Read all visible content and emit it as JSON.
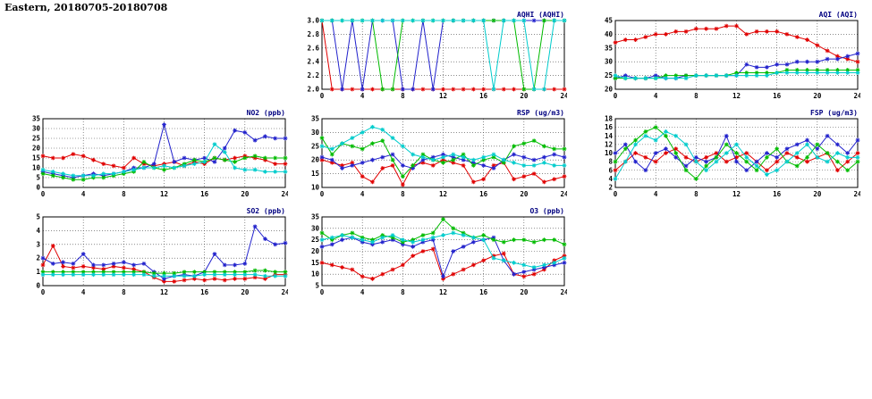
{
  "title": "Eastern, 20180705-20180708",
  "colors": {
    "red": "#e00000",
    "blue": "#2222cc",
    "green": "#00bb00",
    "cyan": "#00cccc",
    "axis": "#000000",
    "grid": "#444444",
    "chart_title": "#000080"
  },
  "chart_data": [
    {
      "type": "line",
      "key": "aqhi",
      "title": "AQHI (AQHI)",
      "xlim": [
        0,
        24
      ],
      "xticks": [
        0,
        4,
        8,
        12,
        16,
        20,
        24
      ],
      "ylim": [
        2,
        3
      ],
      "yticks": [
        2,
        2.2,
        2.4,
        2.6,
        2.8,
        3
      ],
      "ydec": 1,
      "x": [
        0,
        1,
        2,
        3,
        4,
        5,
        6,
        7,
        8,
        9,
        10,
        11,
        12,
        13,
        14,
        15,
        16,
        17,
        18,
        19,
        20,
        21,
        22,
        23,
        24
      ],
      "series": [
        {
          "name": "red",
          "color": "#e00000",
          "values": [
            3,
            2,
            2,
            2,
            2,
            2,
            2,
            2,
            2,
            2,
            2,
            2,
            2,
            2,
            2,
            2,
            2,
            2,
            2,
            2,
            2,
            2,
            2,
            2,
            2
          ]
        },
        {
          "name": "blue",
          "color": "#2222cc",
          "values": [
            3,
            3,
            2,
            3,
            2,
            3,
            3,
            3,
            2,
            2,
            3,
            2,
            3,
            3,
            3,
            3,
            3,
            3,
            3,
            3,
            3,
            3,
            3,
            3,
            3
          ]
        },
        {
          "name": "green",
          "color": "#00bb00",
          "values": [
            3,
            3,
            3,
            3,
            3,
            3,
            2,
            2,
            3,
            3,
            3,
            3,
            3,
            3,
            3,
            3,
            3,
            3,
            3,
            3,
            2,
            2,
            3,
            3,
            3
          ]
        },
        {
          "name": "cyan",
          "color": "#00cccc",
          "values": [
            3,
            3,
            3,
            3,
            3,
            3,
            3,
            3,
            3,
            3,
            3,
            3,
            3,
            3,
            3,
            3,
            3,
            2,
            3,
            3,
            3,
            2,
            2,
            3,
            3
          ]
        }
      ]
    },
    {
      "type": "line",
      "key": "aqi",
      "title": "AQI (AQI)",
      "xlim": [
        0,
        24
      ],
      "xticks": [
        0,
        4,
        8,
        12,
        16,
        20,
        24
      ],
      "ylim": [
        20,
        45
      ],
      "yticks": [
        20,
        25,
        30,
        35,
        40,
        45
      ],
      "ydec": 0,
      "x": [
        0,
        1,
        2,
        3,
        4,
        5,
        6,
        7,
        8,
        9,
        10,
        11,
        12,
        13,
        14,
        15,
        16,
        17,
        18,
        19,
        20,
        21,
        22,
        23,
        24
      ],
      "series": [
        {
          "name": "red",
          "color": "#e00000",
          "values": [
            37,
            38,
            38,
            39,
            40,
            40,
            41,
            41,
            42,
            42,
            42,
            43,
            43,
            40,
            41,
            41,
            41,
            40,
            39,
            38,
            36,
            34,
            32,
            31,
            30
          ]
        },
        {
          "name": "blue",
          "color": "#2222cc",
          "values": [
            24,
            25,
            24,
            24,
            25,
            24,
            24,
            25,
            25,
            25,
            25,
            25,
            25,
            29,
            28,
            28,
            29,
            29,
            30,
            30,
            30,
            31,
            31,
            32,
            33
          ]
        },
        {
          "name": "green",
          "color": "#00bb00",
          "values": [
            24,
            24,
            24,
            24,
            24,
            25,
            25,
            25,
            25,
            25,
            25,
            25,
            26,
            26,
            26,
            26,
            26,
            27,
            27,
            27,
            27,
            27,
            27,
            27,
            27
          ]
        },
        {
          "name": "cyan",
          "color": "#00cccc",
          "values": [
            25,
            24,
            24,
            24,
            24,
            24,
            24,
            24,
            25,
            25,
            25,
            25,
            25,
            25,
            25,
            25,
            26,
            26,
            26,
            26,
            26,
            26,
            26,
            26,
            26
          ]
        }
      ]
    },
    {
      "type": "line",
      "key": "no2",
      "title": "NO2 (ppb)",
      "xlim": [
        0,
        24
      ],
      "xticks": [
        0,
        4,
        8,
        12,
        16,
        20,
        24
      ],
      "ylim": [
        0,
        35
      ],
      "yticks": [
        0,
        5,
        10,
        15,
        20,
        25,
        30,
        35
      ],
      "ydec": 0,
      "x": [
        0,
        1,
        2,
        3,
        4,
        5,
        6,
        7,
        8,
        9,
        10,
        11,
        12,
        13,
        14,
        15,
        16,
        17,
        18,
        19,
        20,
        21,
        22,
        23,
        24
      ],
      "series": [
        {
          "name": "red",
          "color": "#e00000",
          "values": [
            16,
            15,
            15,
            17,
            16,
            14,
            12,
            11,
            10,
            15,
            12,
            11,
            12,
            13,
            11,
            13,
            12,
            15,
            14,
            15,
            16,
            15,
            14,
            12,
            12
          ]
        },
        {
          "name": "blue",
          "color": "#2222cc",
          "values": [
            8,
            7,
            6,
            5,
            6,
            7,
            6,
            7,
            8,
            10,
            10,
            12,
            32,
            13,
            15,
            14,
            15,
            13,
            20,
            29,
            28,
            24,
            26,
            25,
            25
          ]
        },
        {
          "name": "green",
          "color": "#00bb00",
          "values": [
            7,
            6,
            5,
            4,
            4,
            5,
            5,
            6,
            7,
            8,
            13,
            10,
            9,
            10,
            12,
            14,
            13,
            15,
            14,
            13,
            15,
            16,
            15,
            15,
            15
          ]
        },
        {
          "name": "cyan",
          "color": "#00cccc",
          "values": [
            9,
            8,
            7,
            6,
            6,
            6,
            7,
            7,
            8,
            9,
            10,
            10,
            11,
            10,
            11,
            12,
            13,
            22,
            18,
            10,
            9,
            9,
            8,
            8,
            8
          ]
        }
      ]
    },
    {
      "type": "line",
      "key": "rsp",
      "title": "RSP (ug/m3)",
      "xlim": [
        0,
        24
      ],
      "xticks": [
        0,
        4,
        8,
        12,
        16,
        20,
        24
      ],
      "ylim": [
        10,
        35
      ],
      "yticks": [
        10,
        15,
        20,
        25,
        30,
        35
      ],
      "ydec": 0,
      "x": [
        0,
        1,
        2,
        3,
        4,
        5,
        6,
        7,
        8,
        9,
        10,
        11,
        12,
        13,
        14,
        15,
        16,
        17,
        18,
        19,
        20,
        21,
        22,
        23,
        24
      ],
      "series": [
        {
          "name": "red",
          "color": "#e00000",
          "values": [
            20,
            19,
            18,
            19,
            14,
            12,
            17,
            18,
            11,
            18,
            19,
            18,
            20,
            19,
            18,
            12,
            13,
            18,
            19,
            13,
            14,
            15,
            12,
            13,
            14
          ]
        },
        {
          "name": "blue",
          "color": "#2222cc",
          "values": [
            21,
            20,
            17,
            18,
            19,
            20,
            21,
            22,
            18,
            17,
            20,
            21,
            22,
            21,
            20,
            19,
            18,
            17,
            20,
            22,
            21,
            20,
            21,
            22,
            21
          ]
        },
        {
          "name": "green",
          "color": "#00bb00",
          "values": [
            28,
            22,
            26,
            25,
            24,
            26,
            27,
            20,
            14,
            18,
            22,
            20,
            19,
            20,
            22,
            18,
            20,
            21,
            19,
            25,
            26,
            27,
            25,
            24,
            24
          ]
        },
        {
          "name": "cyan",
          "color": "#00cccc",
          "values": [
            25,
            24,
            26,
            28,
            30,
            32,
            31,
            28,
            25,
            22,
            21,
            20,
            21,
            22,
            21,
            20,
            21,
            22,
            20,
            19,
            18,
            18,
            19,
            18,
            18
          ]
        }
      ]
    },
    {
      "type": "line",
      "key": "fsp",
      "title": "FSP (ug/m3)",
      "xlim": [
        0,
        24
      ],
      "xticks": [
        0,
        4,
        8,
        12,
        16,
        20,
        24
      ],
      "ylim": [
        2,
        18
      ],
      "yticks": [
        2,
        4,
        6,
        8,
        10,
        12,
        14,
        16,
        18
      ],
      "ydec": 0,
      "x": [
        0,
        1,
        2,
        3,
        4,
        5,
        6,
        7,
        8,
        9,
        10,
        11,
        12,
        13,
        14,
        15,
        16,
        17,
        18,
        19,
        20,
        21,
        22,
        23,
        24
      ],
      "series": [
        {
          "name": "red",
          "color": "#e00000",
          "values": [
            6,
            8,
            10,
            9,
            8,
            10,
            11,
            9,
            8,
            9,
            10,
            8,
            9,
            10,
            8,
            6,
            8,
            10,
            9,
            8,
            9,
            10,
            6,
            8,
            10
          ]
        },
        {
          "name": "blue",
          "color": "#2222cc",
          "values": [
            10,
            12,
            8,
            6,
            10,
            11,
            9,
            7,
            9,
            8,
            9,
            14,
            8,
            6,
            8,
            10,
            9,
            11,
            12,
            13,
            11,
            14,
            12,
            10,
            13
          ]
        },
        {
          "name": "green",
          "color": "#00bb00",
          "values": [
            8,
            11,
            13,
            15,
            16,
            14,
            10,
            6,
            4,
            7,
            9,
            12,
            10,
            8,
            6,
            9,
            11,
            8,
            7,
            9,
            12,
            10,
            8,
            6,
            8
          ]
        },
        {
          "name": "cyan",
          "color": "#00cccc",
          "values": [
            4,
            8,
            12,
            14,
            13,
            15,
            14,
            12,
            8,
            6,
            8,
            10,
            12,
            9,
            7,
            5,
            6,
            8,
            10,
            12,
            9,
            8,
            10,
            9,
            9
          ]
        }
      ]
    },
    {
      "type": "line",
      "key": "so2",
      "title": "SO2 (ppb)",
      "xlim": [
        0,
        24
      ],
      "xticks": [
        0,
        4,
        8,
        12,
        16,
        20,
        24
      ],
      "ylim": [
        0,
        5
      ],
      "yticks": [
        0,
        1,
        2,
        3,
        4,
        5
      ],
      "ydec": 0,
      "x": [
        0,
        1,
        2,
        3,
        4,
        5,
        6,
        7,
        8,
        9,
        10,
        11,
        12,
        13,
        14,
        15,
        16,
        17,
        18,
        19,
        20,
        21,
        22,
        23,
        24
      ],
      "series": [
        {
          "name": "red",
          "color": "#e00000",
          "values": [
            1.5,
            2.9,
            1.4,
            1.3,
            1.4,
            1.3,
            1.2,
            1.4,
            1.3,
            1.2,
            1.0,
            0.6,
            0.3,
            0.3,
            0.4,
            0.5,
            0.4,
            0.5,
            0.4,
            0.5,
            0.5,
            0.6,
            0.5,
            0.8,
            0.8
          ]
        },
        {
          "name": "blue",
          "color": "#2222cc",
          "values": [
            2.0,
            1.6,
            1.7,
            1.6,
            2.3,
            1.5,
            1.5,
            1.6,
            1.7,
            1.5,
            1.6,
            1.0,
            0.5,
            0.7,
            0.8,
            0.7,
            1.0,
            2.3,
            1.5,
            1.5,
            1.6,
            4.3,
            3.4,
            3.0,
            3.1
          ]
        },
        {
          "name": "green",
          "color": "#00bb00",
          "values": [
            1.0,
            1.0,
            1.0,
            1.0,
            1.0,
            1.0,
            1.0,
            1.0,
            1.0,
            1.0,
            1.0,
            0.9,
            0.9,
            0.9,
            1.0,
            1.0,
            1.0,
            1.0,
            1.0,
            1.0,
            1.0,
            1.1,
            1.1,
            1.0,
            1.0
          ]
        },
        {
          "name": "cyan",
          "color": "#00cccc",
          "values": [
            0.8,
            0.8,
            0.8,
            0.8,
            0.8,
            0.8,
            0.8,
            0.8,
            0.8,
            0.8,
            0.8,
            0.7,
            0.7,
            0.7,
            0.7,
            0.7,
            0.8,
            0.8,
            0.8,
            0.8,
            0.8,
            0.8,
            0.7,
            0.7,
            0.7
          ]
        }
      ]
    },
    {
      "type": "line",
      "key": "o3",
      "title": "O3 (ppb)",
      "xlim": [
        0,
        24
      ],
      "xticks": [
        0,
        4,
        8,
        12,
        16,
        20,
        24
      ],
      "ylim": [
        5,
        35
      ],
      "yticks": [
        5,
        10,
        15,
        20,
        25,
        30,
        35
      ],
      "ydec": 0,
      "x": [
        0,
        1,
        2,
        3,
        4,
        5,
        6,
        7,
        8,
        9,
        10,
        11,
        12,
        13,
        14,
        15,
        16,
        17,
        18,
        19,
        20,
        21,
        22,
        23,
        24
      ],
      "series": [
        {
          "name": "red",
          "color": "#e00000",
          "values": [
            15,
            14,
            13,
            12,
            9,
            8,
            10,
            12,
            14,
            18,
            20,
            21,
            8,
            10,
            12,
            14,
            16,
            18,
            19,
            10,
            9,
            10,
            12,
            16,
            18
          ]
        },
        {
          "name": "blue",
          "color": "#2222cc",
          "values": [
            22,
            23,
            25,
            26,
            24,
            23,
            24,
            25,
            23,
            22,
            24,
            25,
            9,
            20,
            22,
            24,
            25,
            26,
            16,
            10,
            11,
            12,
            13,
            14,
            15
          ]
        },
        {
          "name": "green",
          "color": "#00bb00",
          "values": [
            28,
            25,
            27,
            28,
            26,
            25,
            27,
            26,
            24,
            25,
            27,
            28,
            34,
            30,
            28,
            26,
            27,
            25,
            24,
            25,
            25,
            24,
            25,
            25,
            23
          ]
        },
        {
          "name": "cyan",
          "color": "#00cccc",
          "values": [
            25,
            26,
            27,
            26,
            25,
            24,
            26,
            27,
            25,
            24,
            25,
            26,
            27,
            28,
            27,
            26,
            25,
            17,
            16,
            15,
            14,
            13,
            14,
            15,
            17
          ]
        }
      ]
    }
  ]
}
